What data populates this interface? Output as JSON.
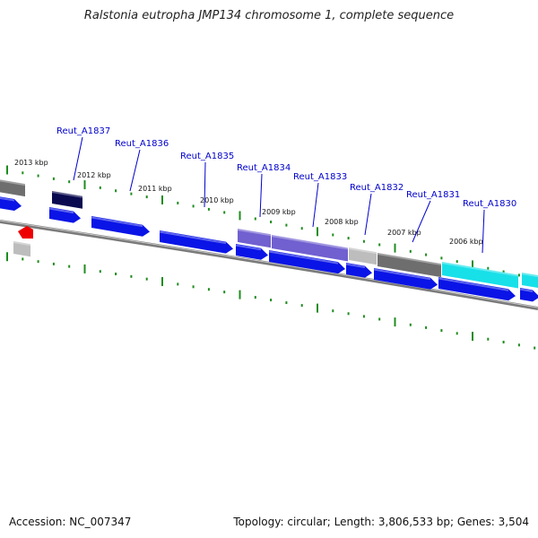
{
  "title": "Ralstonia eutropha JMP134 chromosome 1, complete sequence",
  "footer": {
    "accession": "Accession: NC_007347",
    "summary": "Topology: circular; Length: 3,806,533 bp; Genes: 3,504"
  },
  "colors": {
    "cds": "#0a14e6",
    "dark_navy": "#0a0a50",
    "gray": "#6e6e6e",
    "light_gray": "#bdbdbd",
    "purple": "#7060d0",
    "cyan": "#18e0e8",
    "red": "#ee0000",
    "ticks": "#1e8c1e",
    "backbone": "#7a7a7a",
    "label": "#0000cc"
  },
  "kbp_ticks": [
    "2013 kbp",
    "2012 kbp",
    "2011 kbp",
    "2010 kbp",
    "2009 kbp",
    "2008 kbp",
    "2007 kbp",
    "2006 kbp"
  ],
  "gene_labels": [
    "Reut_A1837",
    "Reut_A1836",
    "Reut_A1835",
    "Reut_A1834",
    "Reut_A1833",
    "Reut_A1832",
    "Reut_A1831",
    "Reut_A1830"
  ]
}
